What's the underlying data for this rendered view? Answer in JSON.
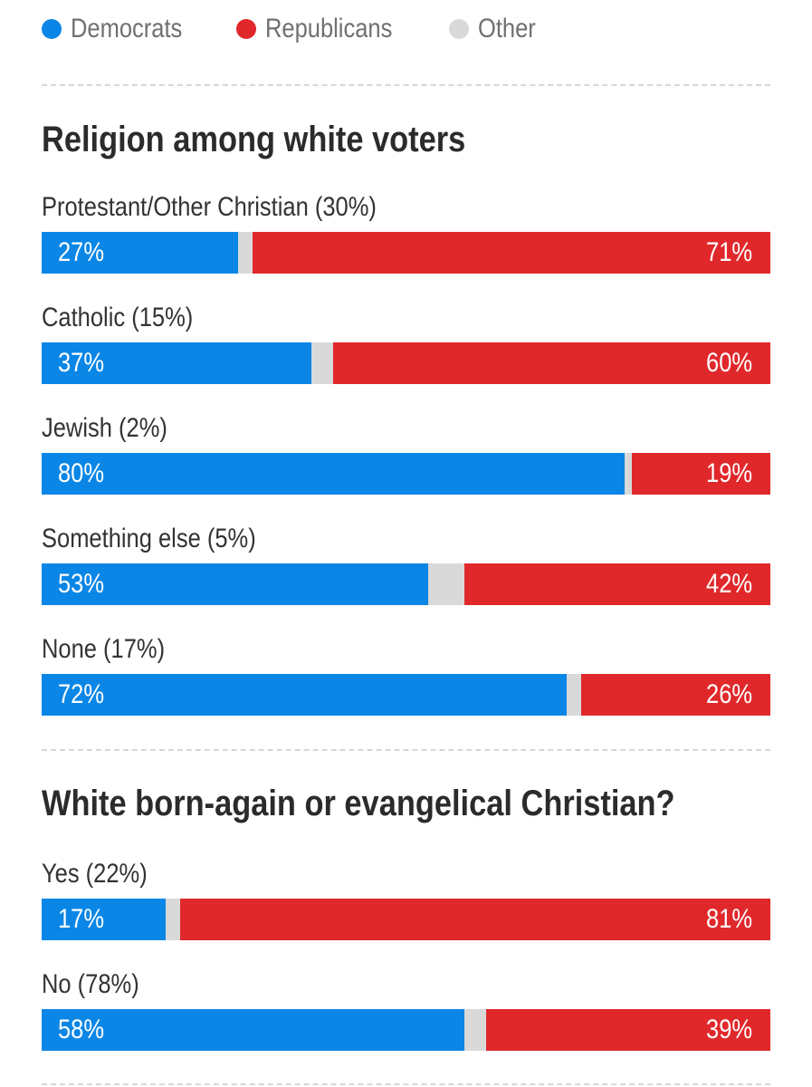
{
  "legend": [
    {
      "label": "Democrats",
      "color": "#0a86e6"
    },
    {
      "label": "Republicans",
      "color": "#e0282b"
    },
    {
      "label": "Other",
      "color": "#d9d9d9"
    }
  ],
  "colors": {
    "dem": "#0a86e6",
    "rep": "#e0282b",
    "other": "#d9d9d9"
  },
  "chart_data": [
    {
      "type": "bar",
      "orientation": "horizontal-stacked",
      "title": "Religion among white voters",
      "categories": [
        "Protestant/Other Christian (30%)",
        "Catholic (15%)",
        "Jewish (2%)",
        "Something else (5%)",
        "None (17%)"
      ],
      "series": [
        {
          "name": "Democrats",
          "values": [
            27,
            37,
            80,
            53,
            72
          ],
          "labels": [
            "27%",
            "37%",
            "80%",
            "53%",
            "72%"
          ]
        },
        {
          "name": "Other",
          "values": [
            2,
            3,
            1,
            5,
            2
          ],
          "labels": [
            "",
            "",
            "",
            "",
            ""
          ]
        },
        {
          "name": "Republicans",
          "values": [
            71,
            60,
            19,
            42,
            26
          ],
          "labels": [
            "71%",
            "60%",
            "19%",
            "42%",
            "26%"
          ]
        }
      ]
    },
    {
      "type": "bar",
      "orientation": "horizontal-stacked",
      "title": "White born-again or evangelical Christian?",
      "categories": [
        "Yes (22%)",
        "No (78%)"
      ],
      "series": [
        {
          "name": "Democrats",
          "values": [
            17,
            58
          ],
          "labels": [
            "17%",
            "58%"
          ]
        },
        {
          "name": "Other",
          "values": [
            2,
            3
          ],
          "labels": [
            "",
            ""
          ]
        },
        {
          "name": "Republicans",
          "values": [
            81,
            39
          ],
          "labels": [
            "81%",
            "39%"
          ]
        }
      ]
    }
  ]
}
